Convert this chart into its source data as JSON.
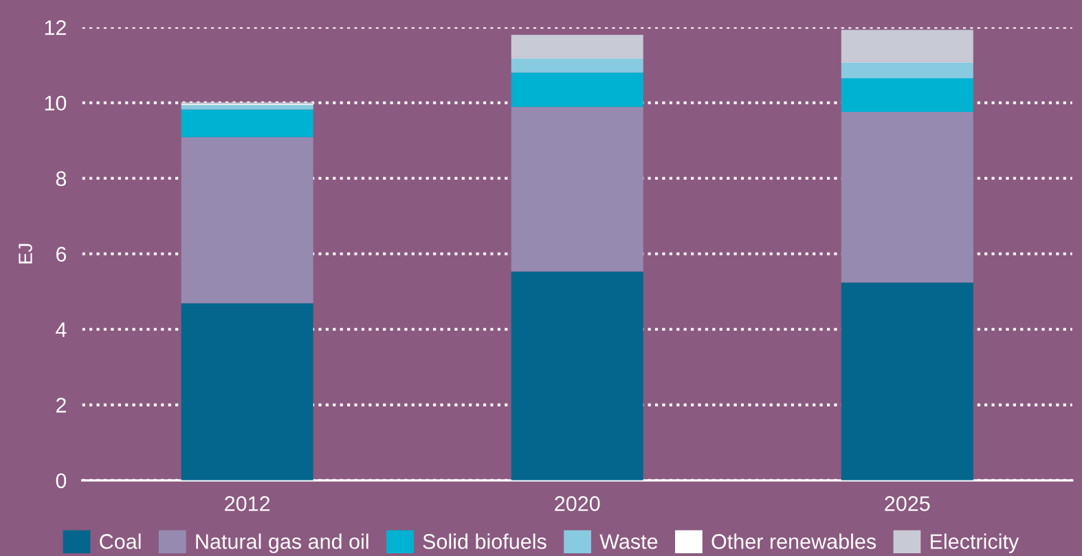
{
  "chart_data": {
    "type": "bar",
    "stacked": true,
    "ylabel": "EJ",
    "categories": [
      "2012",
      "2020",
      "2025"
    ],
    "series": [
      {
        "name": "Coal",
        "color": "#05668d",
        "values": [
          4.69,
          5.53,
          5.24
        ]
      },
      {
        "name": "Natural gas and oil",
        "color": "#968ab1",
        "values": [
          4.4,
          4.36,
          4.52
        ]
      },
      {
        "name": "Solid biofuels",
        "color": "#00b2d1",
        "values": [
          0.73,
          0.91,
          0.89
        ]
      },
      {
        "name": "Waste",
        "color": "#88cadf",
        "values": [
          0.12,
          0.38,
          0.42
        ]
      },
      {
        "name": "Other renewables",
        "color": "#ffffff",
        "values": [
          0.02,
          0.02,
          0.02
        ]
      },
      {
        "name": "Electricity",
        "color": "#c8cad6",
        "values": [
          0.05,
          0.6,
          0.84
        ]
      }
    ],
    "ylim": [
      0,
      12
    ],
    "yticks": [
      0,
      2,
      4,
      6,
      8,
      10,
      12
    ],
    "grid": "y",
    "legend": "bottom"
  }
}
